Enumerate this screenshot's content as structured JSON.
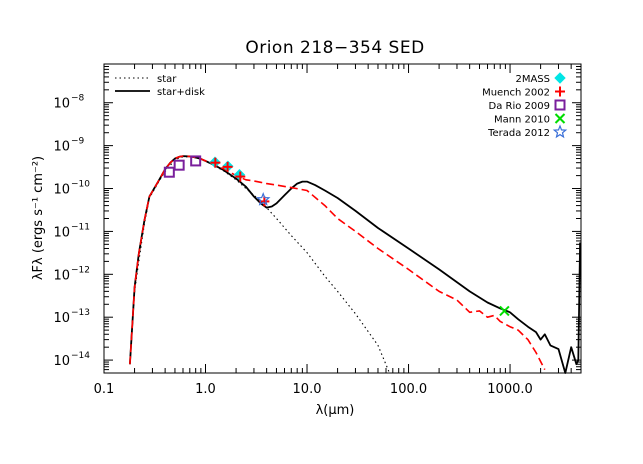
{
  "chart_data": {
    "type": "line",
    "title": "Orion 218−354 SED",
    "xlabel": "λ(μm)",
    "ylabel": "λFλ (ergs s⁻¹ cm⁻²)",
    "x_scale": "log",
    "y_scale": "log",
    "xlim": [
      0.1,
      5000
    ],
    "ylim": [
      5e-15,
      8e-08
    ],
    "x_ticks": [
      {
        "value": 0.1,
        "label": "0.1"
      },
      {
        "value": 1,
        "label": "1.0"
      },
      {
        "value": 10,
        "label": "10.0"
      },
      {
        "value": 100,
        "label": "100.0"
      },
      {
        "value": 1000,
        "label": "1000.0"
      }
    ],
    "y_ticks": [
      {
        "value": 1e-14,
        "base": "10",
        "exp": "−14"
      },
      {
        "value": 1e-13,
        "base": "10",
        "exp": "−13"
      },
      {
        "value": 1e-12,
        "base": "10",
        "exp": "−12"
      },
      {
        "value": 1e-11,
        "base": "10",
        "exp": "−11"
      },
      {
        "value": 1e-10,
        "base": "10",
        "exp": "−10"
      },
      {
        "value": 1e-09,
        "base": "10",
        "exp": "−9"
      },
      {
        "value": 1e-08,
        "base": "10",
        "exp": "−8"
      }
    ],
    "grid": false,
    "lines_legend": {
      "placement": "top-left",
      "entries": [
        {
          "name": "star",
          "style": "dotted"
        },
        {
          "name": "star+disk",
          "style": "solid"
        }
      ]
    },
    "points_legend": {
      "placement": "top-right",
      "entries": [
        {
          "name": "2MASS",
          "marker": "diamond",
          "color": "#00e5e5"
        },
        {
          "name": "Muench 2002",
          "marker": "plus",
          "color": "#ff0000"
        },
        {
          "name": "Da Rio 2009",
          "marker": "square",
          "color": "#7a1f9c"
        },
        {
          "name": "Mann 2010",
          "marker": "x",
          "color": "#00dd00"
        },
        {
          "name": "Terada 2012",
          "marker": "star",
          "color": "#3a6fd8"
        }
      ]
    },
    "series": [
      {
        "name": "star",
        "style": "dotted",
        "color": "#000000",
        "x": [
          0.18,
          0.2,
          0.22,
          0.25,
          0.28,
          0.3,
          0.35,
          0.4,
          0.45,
          0.5,
          0.55,
          0.6,
          0.7,
          0.8,
          0.9,
          1.0,
          1.2,
          1.5,
          2.0,
          2.5,
          3.0,
          3.5,
          4.0,
          5.0,
          7.0,
          10.0,
          15.0,
          20.0,
          30.0,
          50.0,
          65.0
        ],
        "y": [
          8e-15,
          4e-13,
          2e-12,
          1.5e-11,
          6e-11,
          8e-11,
          1.5e-10,
          2.5e-10,
          3.5e-10,
          4.5e-10,
          5.2e-10,
          5.5e-10,
          5.5e-10,
          5.2e-10,
          4.8e-10,
          4.3e-10,
          3.5e-10,
          2.6e-10,
          1.6e-10,
          1e-10,
          7e-11,
          5e-11,
          3.6e-11,
          2e-11,
          8e-12,
          3.2e-12,
          9e-13,
          4e-13,
          1.2e-13,
          2.2e-14,
          5e-15
        ]
      },
      {
        "name": "star+disk",
        "style": "solid",
        "color": "#000000",
        "x": [
          0.18,
          0.2,
          0.22,
          0.25,
          0.28,
          0.3,
          0.35,
          0.4,
          0.45,
          0.5,
          0.55,
          0.6,
          0.7,
          0.8,
          0.9,
          1.0,
          1.2,
          1.5,
          2.0,
          2.5,
          3.0,
          3.5,
          4.0,
          4.5,
          5.0,
          6.0,
          7.0,
          8.0,
          9.0,
          10.0,
          12.0,
          15.0,
          20.0,
          30.0,
          50.0,
          100.0,
          200.0,
          400.0,
          600.0,
          800.0,
          1000.0,
          1200.0,
          1500.0,
          1800.0,
          2000.0,
          2200.0,
          2500.0,
          3000.0,
          3500.0,
          4000.0,
          4500.0,
          4700.0,
          4900.0
        ],
        "y": [
          8e-15,
          5e-13,
          3e-12,
          1.8e-11,
          6.5e-11,
          8.5e-11,
          1.6e-10,
          2.8e-10,
          4e-10,
          5e-10,
          5.5e-10,
          5.7e-10,
          5.6e-10,
          5.3e-10,
          4.9e-10,
          4.4e-10,
          3.6e-10,
          2.7e-10,
          1.7e-10,
          1.1e-10,
          6.5e-11,
          4.5e-11,
          3.6e-11,
          3.8e-11,
          4.5e-11,
          7e-11,
          1e-10,
          1.3e-10,
          1.45e-10,
          1.45e-10,
          1.2e-10,
          9e-11,
          6e-11,
          3e-11,
          1.2e-11,
          4e-12,
          1.3e-12,
          4e-13,
          2.2e-13,
          1.6e-13,
          1.3e-13,
          9e-14,
          6e-14,
          4.5e-14,
          3e-14,
          4e-14,
          2.2e-14,
          1.8e-14,
          5e-15,
          2e-14,
          8e-15,
          1e-14,
          5.5e-12
        ]
      },
      {
        "name": "",
        "style": "dashed",
        "color": "#ff0000",
        "x": [
          0.18,
          0.2,
          0.22,
          0.25,
          0.28,
          0.3,
          0.35,
          0.4,
          0.45,
          0.5,
          0.55,
          0.6,
          0.7,
          0.8,
          0.9,
          1.0,
          1.2,
          1.5,
          2.0,
          2.5,
          3.0,
          3.5,
          4.0,
          5.0,
          7.0,
          10.0,
          15.0,
          20.0,
          30.0,
          50.0,
          100.0,
          200.0,
          300.0,
          400.0,
          500.0,
          600.0,
          700.0,
          800.0,
          1000.0,
          1200.0,
          1500.0,
          1800.0,
          2200.0
        ],
        "y": [
          8e-15,
          5e-13,
          3e-12,
          1.8e-11,
          6.5e-11,
          8.5e-11,
          1.6e-10,
          2.8e-10,
          4e-10,
          5e-10,
          5.5e-10,
          5.7e-10,
          5.6e-10,
          5.3e-10,
          4.9e-10,
          4.4e-10,
          3.7e-10,
          2.9e-10,
          2e-10,
          1.6e-10,
          1.5e-10,
          1.4e-10,
          1.3e-10,
          1.2e-10,
          1.05e-10,
          9e-11,
          4e-11,
          2e-11,
          1e-11,
          4e-12,
          1.3e-12,
          4e-13,
          2.5e-13,
          1.3e-13,
          1.4e-13,
          1e-13,
          1.1e-13,
          8e-14,
          6e-14,
          5e-14,
          3e-14,
          1.5e-14,
          6e-15
        ]
      }
    ],
    "points": [
      {
        "source": "2MASS",
        "marker": "diamond",
        "color": "#00e5e5",
        "x": [
          1.24,
          1.66,
          2.16
        ],
        "y": [
          4.1e-10,
          3.3e-10,
          2.1e-10
        ]
      },
      {
        "source": "Muench 2002",
        "marker": "plus",
        "color": "#ff0000",
        "x": [
          1.25,
          1.65,
          2.2,
          3.8
        ],
        "y": [
          4e-10,
          3.2e-10,
          1.9e-10,
          5e-11
        ]
      },
      {
        "source": "Da Rio 2009",
        "marker": "square",
        "color": "#7a1f9c",
        "x": [
          0.44,
          0.55,
          0.8
        ],
        "y": [
          2.4e-10,
          3.5e-10,
          4.4e-10
        ]
      },
      {
        "source": "Mann 2010",
        "marker": "x",
        "color": "#00dd00",
        "x": [
          880.0
        ],
        "y": [
          1.4e-13
        ]
      },
      {
        "source": "Terada 2012",
        "marker": "star",
        "color": "#3a6fd8",
        "x": [
          3.7
        ],
        "y": [
          5.5e-11
        ]
      }
    ]
  }
}
